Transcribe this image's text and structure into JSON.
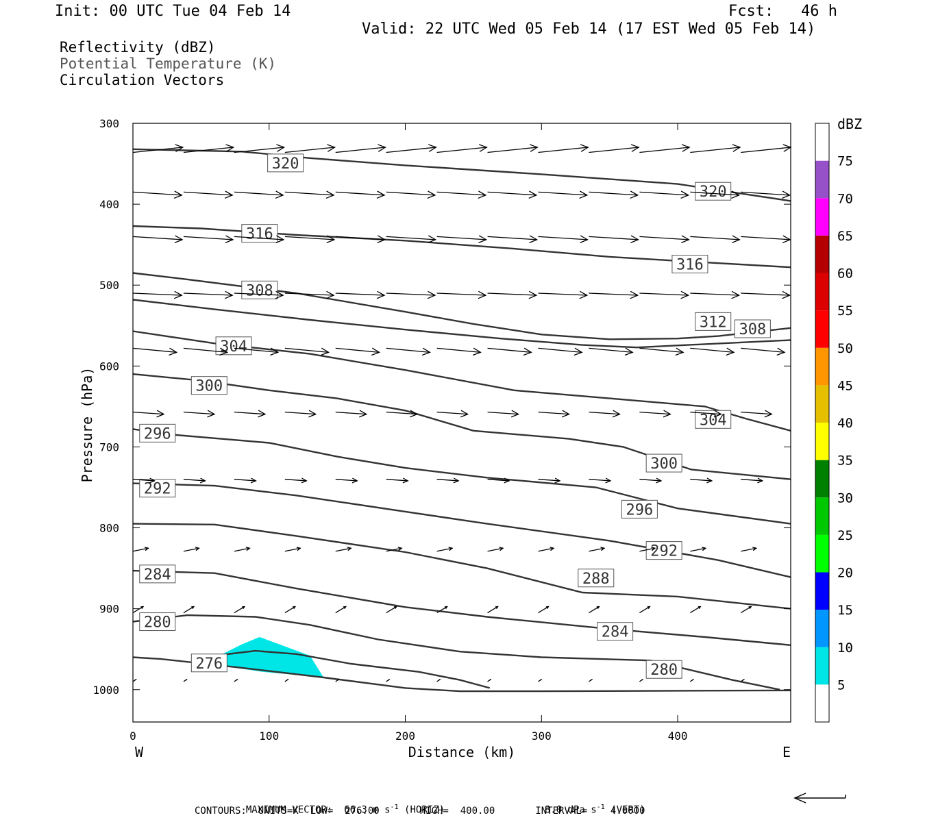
{
  "header": {
    "init": "Init: 00 UTC Tue 04 Feb 14",
    "fcst": "Fcst:   46 h",
    "valid": "Valid: 22 UTC Wed 05 Feb 14 (17 EST Wed 05 Feb 14)"
  },
  "legend": {
    "line1": "Reflectivity (dBZ)",
    "line2": "Potential Temperature (K)",
    "line3": "Circulation Vectors"
  },
  "footer": {
    "max_vector": "MAXIMUM VECTOR:  66.3 m s",
    "max_vector_exp": "-1",
    "horiz": " (HORIZ)",
    "vert": "8.0 dPa s",
    "vert_exp": "-1",
    "vert_tail": " (VERT)",
    "contours": "CONTOURS:  UNITS=K  LOW=  276.00       HIGH=  400.00       INTERVAL=    4.0000"
  },
  "chart_data": {
    "type": "cross-section",
    "xlabel": "Distance (km)",
    "ylabel": "Pressure (hPa)",
    "x_ticks": [
      0,
      100,
      200,
      300,
      400
    ],
    "y_ticks": [
      300,
      400,
      500,
      600,
      700,
      800,
      900,
      1000
    ],
    "xlim": [
      0,
      483
    ],
    "ylim": [
      1040,
      300
    ],
    "x_end_labels": {
      "left": "W",
      "right": "E"
    },
    "colorbar": {
      "unit": "dBZ",
      "labels": [
        5,
        10,
        15,
        20,
        25,
        30,
        35,
        40,
        45,
        50,
        55,
        60,
        65,
        70,
        75
      ],
      "colors": [
        "#ffffff",
        "#00e6e6",
        "#0096ff",
        "#0000ff",
        "#00ff00",
        "#00c800",
        "#008000",
        "#ffff00",
        "#e6c000",
        "#ff9600",
        "#ff0000",
        "#dc0000",
        "#b40000",
        "#ff00ff",
        "#9650c8",
        "#ffffff"
      ]
    },
    "reflectivity_area": {
      "level_dbz": 5,
      "color": "#00e6e6",
      "points": [
        [
          55,
          965
        ],
        [
          80,
          944
        ],
        [
          93,
          935
        ],
        [
          130,
          958
        ],
        [
          140,
          985
        ],
        [
          95,
          978
        ],
        [
          55,
          968
        ]
      ]
    },
    "theta_contours": [
      {
        "label": "320",
        "points": [
          [
            0,
            332
          ],
          [
            80,
            335
          ],
          [
            130,
            343
          ],
          [
            200,
            352
          ],
          [
            300,
            363
          ],
          [
            400,
            375
          ],
          [
            483,
            396
          ]
        ],
        "labels_at": [
          [
            112,
            349
          ],
          [
            426,
            384
          ]
        ]
      },
      {
        "label": "316",
        "points": [
          [
            0,
            427
          ],
          [
            50,
            430
          ],
          [
            120,
            438
          ],
          [
            200,
            445
          ],
          [
            280,
            455
          ],
          [
            350,
            465
          ],
          [
            400,
            470
          ],
          [
            483,
            478
          ]
        ],
        "labels_at": [
          [
            93,
            436
          ],
          [
            409,
            474
          ]
        ]
      },
      {
        "label": "312",
        "points": [
          [
            0,
            518
          ],
          [
            60,
            530
          ],
          [
            130,
            543
          ],
          [
            200,
            555
          ],
          [
            270,
            566
          ],
          [
            330,
            574
          ],
          [
            370,
            577
          ],
          [
            420,
            573
          ],
          [
            483,
            568
          ]
        ],
        "labels_at": [
          [
            426,
            545
          ]
        ]
      },
      {
        "label": "308",
        "points": [
          [
            0,
            485
          ],
          [
            40,
            493
          ],
          [
            120,
            510
          ],
          [
            200,
            533
          ],
          [
            250,
            548
          ],
          [
            300,
            561
          ],
          [
            350,
            567
          ],
          [
            400,
            566
          ],
          [
            430,
            563
          ],
          [
            483,
            553
          ]
        ],
        "labels_at": [
          [
            93,
            506
          ],
          [
            455,
            554
          ]
        ]
      },
      {
        "label": "304",
        "points": [
          [
            0,
            557
          ],
          [
            60,
            572
          ],
          [
            130,
            585
          ],
          [
            200,
            605
          ],
          [
            280,
            630
          ],
          [
            350,
            640
          ],
          [
            420,
            650
          ],
          [
            450,
            665
          ],
          [
            483,
            680
          ]
        ],
        "labels_at": [
          [
            74,
            575
          ],
          [
            426,
            666
          ]
        ]
      },
      {
        "label": "300",
        "points": [
          [
            0,
            610
          ],
          [
            50,
            618
          ],
          [
            100,
            630
          ],
          [
            150,
            640
          ],
          [
            200,
            655
          ],
          [
            250,
            680
          ],
          [
            320,
            690
          ],
          [
            360,
            700
          ],
          [
            410,
            728
          ],
          [
            483,
            740
          ]
        ],
        "labels_at": [
          [
            56,
            624
          ],
          [
            390,
            720
          ]
        ]
      },
      {
        "label": "296",
        "points": [
          [
            0,
            678
          ],
          [
            30,
            685
          ],
          [
            100,
            695
          ],
          [
            150,
            712
          ],
          [
            200,
            726
          ],
          [
            260,
            738
          ],
          [
            340,
            750
          ],
          [
            400,
            776
          ],
          [
            483,
            795
          ]
        ],
        "labels_at": [
          [
            18,
            683
          ],
          [
            372,
            777
          ]
        ]
      },
      {
        "label": "292",
        "points": [
          [
            0,
            745
          ],
          [
            60,
            748
          ],
          [
            120,
            760
          ],
          [
            200,
            780
          ],
          [
            260,
            795
          ],
          [
            350,
            816
          ],
          [
            430,
            840
          ],
          [
            483,
            861
          ]
        ],
        "labels_at": [
          [
            18,
            751
          ],
          [
            390,
            828
          ]
        ]
      },
      {
        "label": "288",
        "points": [
          [
            0,
            795
          ],
          [
            60,
            796
          ],
          [
            120,
            810
          ],
          [
            200,
            830
          ],
          [
            260,
            850
          ],
          [
            330,
            880
          ],
          [
            400,
            885
          ],
          [
            483,
            900
          ]
        ],
        "labels_at": [
          [
            340,
            862
          ]
        ]
      },
      {
        "label": "284",
        "points": [
          [
            0,
            853
          ],
          [
            60,
            856
          ],
          [
            120,
            875
          ],
          [
            200,
            898
          ],
          [
            260,
            910
          ],
          [
            350,
            925
          ],
          [
            420,
            935
          ],
          [
            483,
            945
          ]
        ],
        "labels_at": [
          [
            18,
            857
          ],
          [
            354,
            928
          ]
        ]
      },
      {
        "label": "280",
        "points": [
          [
            0,
            916
          ],
          [
            40,
            908
          ],
          [
            90,
            910
          ],
          [
            130,
            920
          ],
          [
            180,
            938
          ],
          [
            240,
            953
          ],
          [
            300,
            960
          ],
          [
            380,
            964
          ],
          [
            440,
            988
          ],
          [
            475,
            1000
          ]
        ],
        "labels_at": [
          [
            18,
            916
          ],
          [
            390,
            975
          ]
        ]
      },
      {
        "label": "276",
        "points": [
          [
            65,
            957
          ],
          [
            90,
            952
          ],
          [
            120,
            956
          ],
          [
            160,
            968
          ],
          [
            210,
            978
          ],
          [
            240,
            988
          ],
          [
            262,
            998
          ]
        ],
        "labels_at": [
          [
            56,
            967
          ]
        ]
      },
      {
        "label": "",
        "points": [
          [
            0,
            960
          ],
          [
            20,
            962
          ],
          [
            80,
            973
          ],
          [
            140,
            985
          ],
          [
            200,
            998
          ],
          [
            240,
            1002
          ],
          [
            300,
            1002
          ],
          [
            483,
            1001
          ]
        ],
        "labels_at": []
      }
    ],
    "vector_rows": [
      {
        "p": 336,
        "u": 0.97,
        "w": 0.1
      },
      {
        "p": 385,
        "u": 0.95,
        "w": -0.06
      },
      {
        "p": 440,
        "u": 0.96,
        "w": -0.06
      },
      {
        "p": 510,
        "u": 0.95,
        "w": -0.04
      },
      {
        "p": 578,
        "u": 0.85,
        "w": -0.08
      },
      {
        "p": 657,
        "u": 0.6,
        "w": -0.04
      },
      {
        "p": 740,
        "u": 0.42,
        "w": -0.03
      },
      {
        "p": 829,
        "u": 0.3,
        "w": 0.06
      },
      {
        "p": 905,
        "u": 0.2,
        "w": 0.12
      },
      {
        "p": 990,
        "u": 0.06,
        "w": 0.04
      }
    ],
    "reference_vector": {
      "direction": "left"
    }
  }
}
